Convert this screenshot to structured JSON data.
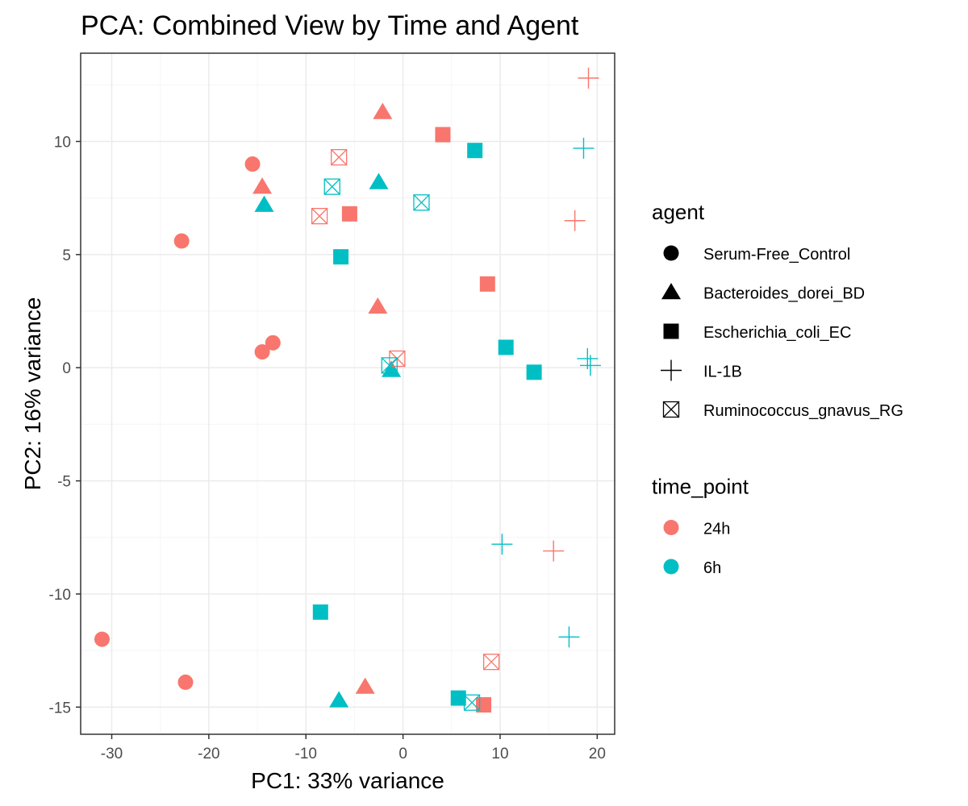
{
  "colors": {
    "24h": "#F8766D",
    "6h": "#00BFC4",
    "legend_shape": "#000000",
    "grid_major": "#EBEBEB",
    "grid_minor": "#F5F5F5",
    "panel_border": "#333333"
  },
  "chart_data": {
    "type": "scatter",
    "title": "PCA: Combined View by Time and Agent",
    "xlabel": "PC1: 33% variance",
    "ylabel": "PC2: 16% variance",
    "xlim": [
      -33.2,
      21.8
    ],
    "ylim": [
      -16.2,
      13.9
    ],
    "x_ticks": [
      -30,
      -20,
      -10,
      0,
      10,
      20
    ],
    "y_ticks": [
      -15,
      -10,
      -5,
      0,
      5,
      10
    ],
    "x_tick_labels": [
      "-30",
      "-20",
      "-10",
      "0",
      "10",
      "20"
    ],
    "y_tick_labels": [
      "-15",
      "-10",
      "-5",
      "0",
      "5",
      "10"
    ],
    "grid": true,
    "legend_placement": "right",
    "legends": [
      {
        "title": "agent",
        "kind": "shape",
        "entries": [
          {
            "label": "Serum-Free_Control",
            "shape": "circle"
          },
          {
            "label": "Bacteroides_dorei_BD",
            "shape": "triangle"
          },
          {
            "label": "Escherichia_coli_EC",
            "shape": "square"
          },
          {
            "label": "IL-1B",
            "shape": "plus"
          },
          {
            "label": "Ruminococcus_gnavus_RG",
            "shape": "boxx"
          }
        ]
      },
      {
        "title": "time_point",
        "kind": "color",
        "entries": [
          {
            "label": "24h",
            "shape": "circle",
            "time": "24h"
          },
          {
            "label": "6h",
            "shape": "circle",
            "time": "6h"
          }
        ]
      }
    ],
    "points": [
      {
        "x": -15.5,
        "y": 9.0,
        "agent": "Serum-Free_Control",
        "time": "24h"
      },
      {
        "x": -22.8,
        "y": 5.6,
        "agent": "Serum-Free_Control",
        "time": "24h"
      },
      {
        "x": -14.5,
        "y": 0.7,
        "agent": "Serum-Free_Control",
        "time": "24h"
      },
      {
        "x": -13.4,
        "y": 1.1,
        "agent": "Serum-Free_Control",
        "time": "24h"
      },
      {
        "x": -31.0,
        "y": -12.0,
        "agent": "Serum-Free_Control",
        "time": "24h"
      },
      {
        "x": -22.4,
        "y": -13.9,
        "agent": "Serum-Free_Control",
        "time": "24h"
      },
      {
        "x": -2.1,
        "y": 11.3,
        "agent": "Bacteroides_dorei_BD",
        "time": "24h"
      },
      {
        "x": -14.5,
        "y": 8.0,
        "agent": "Bacteroides_dorei_BD",
        "time": "24h"
      },
      {
        "x": -2.6,
        "y": 2.7,
        "agent": "Bacteroides_dorei_BD",
        "time": "24h"
      },
      {
        "x": -3.9,
        "y": -14.1,
        "agent": "Bacteroides_dorei_BD",
        "time": "24h"
      },
      {
        "x": -2.5,
        "y": 8.2,
        "agent": "Bacteroides_dorei_BD",
        "time": "6h"
      },
      {
        "x": -14.3,
        "y": 7.2,
        "agent": "Bacteroides_dorei_BD",
        "time": "6h"
      },
      {
        "x": -1.2,
        "y": -0.1,
        "agent": "Bacteroides_dorei_BD",
        "time": "6h"
      },
      {
        "x": -6.6,
        "y": -14.7,
        "agent": "Bacteroides_dorei_BD",
        "time": "6h"
      },
      {
        "x": 4.1,
        "y": 10.3,
        "agent": "Escherichia_coli_EC",
        "time": "24h"
      },
      {
        "x": -5.5,
        "y": 6.8,
        "agent": "Escherichia_coli_EC",
        "time": "24h"
      },
      {
        "x": 8.7,
        "y": 3.7,
        "agent": "Escherichia_coli_EC",
        "time": "24h"
      },
      {
        "x": 8.3,
        "y": -14.9,
        "agent": "Escherichia_coli_EC",
        "time": "24h"
      },
      {
        "x": 7.4,
        "y": 9.6,
        "agent": "Escherichia_coli_EC",
        "time": "6h"
      },
      {
        "x": -6.4,
        "y": 4.9,
        "agent": "Escherichia_coli_EC",
        "time": "6h"
      },
      {
        "x": 10.6,
        "y": 0.9,
        "agent": "Escherichia_coli_EC",
        "time": "6h"
      },
      {
        "x": 13.5,
        "y": -0.2,
        "agent": "Escherichia_coli_EC",
        "time": "6h"
      },
      {
        "x": -8.5,
        "y": -10.8,
        "agent": "Escherichia_coli_EC",
        "time": "6h"
      },
      {
        "x": 5.7,
        "y": -14.6,
        "agent": "Escherichia_coli_EC",
        "time": "6h"
      },
      {
        "x": 19.1,
        "y": 12.8,
        "agent": "IL-1B",
        "time": "24h"
      },
      {
        "x": 17.7,
        "y": 6.5,
        "agent": "IL-1B",
        "time": "24h"
      },
      {
        "x": 15.5,
        "y": -8.1,
        "agent": "IL-1B",
        "time": "24h"
      },
      {
        "x": 18.6,
        "y": 9.7,
        "agent": "IL-1B",
        "time": "6h"
      },
      {
        "x": 19.0,
        "y": 0.4,
        "agent": "IL-1B",
        "time": "6h"
      },
      {
        "x": 19.3,
        "y": 0.1,
        "agent": "IL-1B",
        "time": "6h"
      },
      {
        "x": 10.2,
        "y": -7.8,
        "agent": "IL-1B",
        "time": "6h"
      },
      {
        "x": 17.1,
        "y": -11.9,
        "agent": "IL-1B",
        "time": "6h"
      },
      {
        "x": -6.6,
        "y": 9.3,
        "agent": "Ruminococcus_gnavus_RG",
        "time": "24h"
      },
      {
        "x": -8.6,
        "y": 6.7,
        "agent": "Ruminococcus_gnavus_RG",
        "time": "24h"
      },
      {
        "x": -0.6,
        "y": 0.4,
        "agent": "Ruminococcus_gnavus_RG",
        "time": "24h"
      },
      {
        "x": 9.1,
        "y": -13.0,
        "agent": "Ruminococcus_gnavus_RG",
        "time": "24h"
      },
      {
        "x": -7.3,
        "y": 8.0,
        "agent": "Ruminococcus_gnavus_RG",
        "time": "6h"
      },
      {
        "x": 1.9,
        "y": 7.3,
        "agent": "Ruminococcus_gnavus_RG",
        "time": "6h"
      },
      {
        "x": -1.4,
        "y": 0.1,
        "agent": "Ruminococcus_gnavus_RG",
        "time": "6h"
      },
      {
        "x": 7.1,
        "y": -14.8,
        "agent": "Ruminococcus_gnavus_RG",
        "time": "6h"
      }
    ]
  }
}
